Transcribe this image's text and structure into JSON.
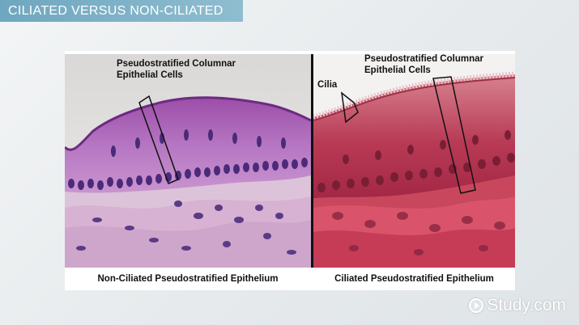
{
  "header": {
    "title": "CILIATED VERSUS NON-CILIATED"
  },
  "figure": {
    "left_panel": {
      "annotation": "Pseudostratified Columnar\nEpithelial Cells",
      "caption": "Non-Ciliated Pseudostratified Epithelium"
    },
    "right_panel": {
      "annotation": "Pseudostratified Columnar\nEpithelial Cells",
      "cilia_label": "Cilia",
      "caption": "Ciliated Pseudostratified Epithelium"
    }
  },
  "brand": {
    "logo_text": "Study.com",
    "icon": "play-circle-icon"
  },
  "colors": {
    "title_bar": "#7fb3c8",
    "stain_purple": "#8a4f9e",
    "stain_red": "#b83a55"
  }
}
